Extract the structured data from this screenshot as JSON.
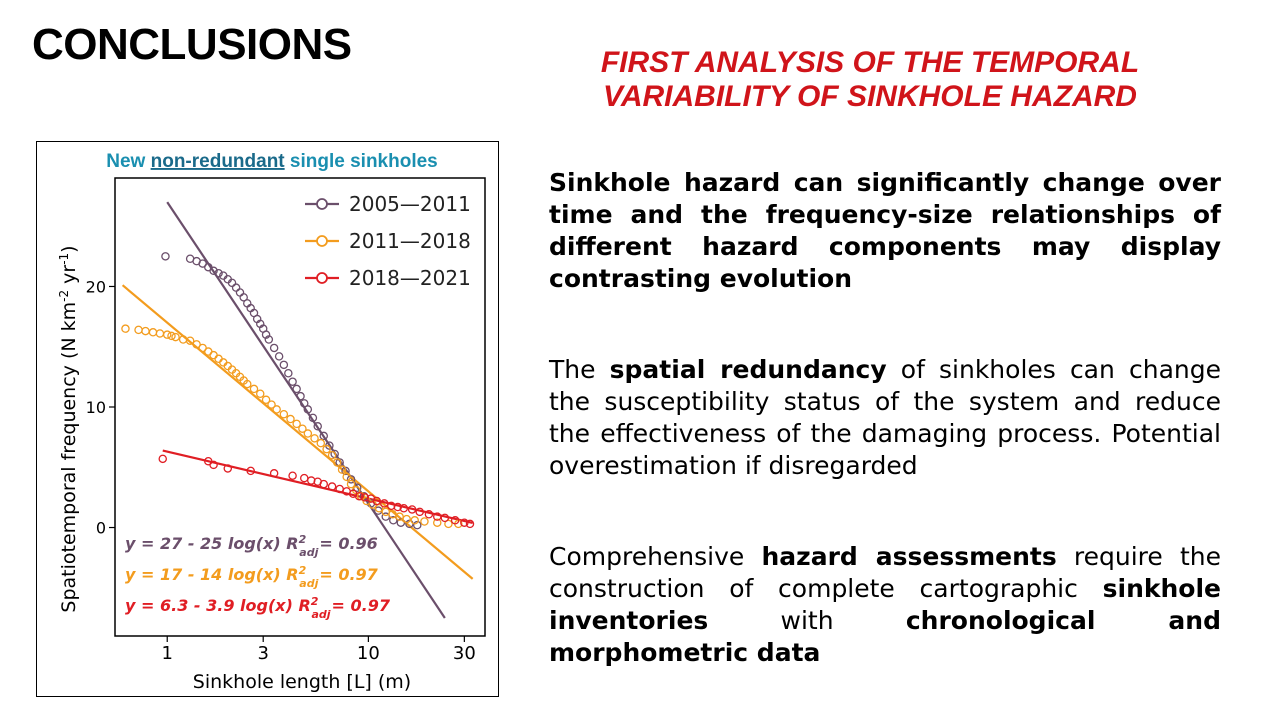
{
  "page": {
    "title": "CONCLUSIONS",
    "subtitle_line1": "FIRST ANALYSIS OF THE TEMPORAL",
    "subtitle_line2": "VARIABILITY OF SINKHOLE HAZARD"
  },
  "paragraphs": {
    "p1": "Sinkhole hazard can significantly change over time and the frequency-size relationships of different hazard components may display contrasting evolution",
    "p2_a": "The ",
    "p2_b": "spatial redundancy",
    "p2_c": " of sinkholes can change the susceptibility status of the system and reduce the effectiveness of the damaging process. Potential overestimation if disregarded",
    "p3_a": "Comprehensive ",
    "p3_b": "hazard assessments",
    "p3_c": " require the construction of complete cartographic ",
    "p3_d": "sinkhole inventories",
    "p3_e": " with ",
    "p3_f": "chronological and morphometric data"
  },
  "chart_data": {
    "type": "scatter",
    "title_a": "New ",
    "title_b": "non-redundant",
    "title_c": " single sinkholes",
    "xlabel": "Sinkhole length [L] (m)",
    "ylabel": "Spatiotemporal frequency (N km",
    "ylabel_sup1": "-2",
    "ylabel_mid": " yr",
    "ylabel_sup2": "-1",
    "ylabel_end": ")",
    "x_scale": "log",
    "xlim": [
      0.55,
      38
    ],
    "ylim": [
      -9,
      29
    ],
    "x_ticks": [
      {
        "value": 1,
        "label": "1"
      },
      {
        "value": 3,
        "label": "3"
      },
      {
        "value": 10,
        "label": "10"
      },
      {
        "value": 30,
        "label": "30"
      }
    ],
    "y_ticks": [
      {
        "value": 0,
        "label": "0"
      },
      {
        "value": 10,
        "label": "10"
      },
      {
        "value": 20,
        "label": "20"
      }
    ],
    "legend_position": "top-right",
    "series": [
      {
        "name": "2005—2011",
        "color": "#6b4f6b",
        "fit": {
          "a": 27,
          "b": 25,
          "x_range": [
            1,
            24
          ]
        },
        "equation": "y = 27 - 25 log(x) R",
        "r2": "= 0.96",
        "points": [
          [
            0.98,
            22.5
          ],
          [
            1.3,
            22.3
          ],
          [
            1.4,
            22.1
          ],
          [
            1.5,
            21.9
          ],
          [
            1.6,
            21.6
          ],
          [
            1.7,
            21.3
          ],
          [
            1.8,
            21.1
          ],
          [
            1.9,
            20.9
          ],
          [
            2.0,
            20.6
          ],
          [
            2.1,
            20.3
          ],
          [
            2.2,
            19.9
          ],
          [
            2.3,
            19.5
          ],
          [
            2.4,
            19.1
          ],
          [
            2.5,
            18.6
          ],
          [
            2.6,
            18.2
          ],
          [
            2.7,
            17.8
          ],
          [
            2.8,
            17.3
          ],
          [
            2.9,
            16.9
          ],
          [
            3.0,
            16.5
          ],
          [
            3.1,
            16.0
          ],
          [
            3.2,
            15.6
          ],
          [
            3.4,
            14.9
          ],
          [
            3.6,
            14.2
          ],
          [
            3.8,
            13.5
          ],
          [
            4.0,
            12.8
          ],
          [
            4.2,
            12.1
          ],
          [
            4.4,
            11.5
          ],
          [
            4.6,
            10.9
          ],
          [
            4.8,
            10.3
          ],
          [
            5.0,
            9.8
          ],
          [
            5.3,
            9.1
          ],
          [
            5.6,
            8.4
          ],
          [
            6.0,
            7.6
          ],
          [
            6.4,
            6.8
          ],
          [
            6.8,
            6.1
          ],
          [
            7.2,
            5.4
          ],
          [
            7.7,
            4.7
          ],
          [
            8.2,
            4.0
          ],
          [
            8.8,
            3.3
          ],
          [
            9.5,
            2.6
          ],
          [
            10.3,
            2.0
          ],
          [
            11.2,
            1.4
          ],
          [
            12.2,
            0.9
          ],
          [
            13.3,
            0.6
          ],
          [
            14.5,
            0.4
          ],
          [
            16.0,
            0.3
          ],
          [
            17.5,
            0.2
          ]
        ]
      },
      {
        "name": "2011—2018",
        "color": "#f39c1e",
        "fit": {
          "a": 17,
          "b": 14,
          "x_range": [
            0.6,
            33
          ]
        },
        "equation": "y = 17 - 14 log(x) R",
        "r2": "= 0.97",
        "points": [
          [
            0.62,
            16.5
          ],
          [
            0.72,
            16.4
          ],
          [
            0.78,
            16.3
          ],
          [
            0.85,
            16.2
          ],
          [
            0.92,
            16.1
          ],
          [
            1.0,
            16.0
          ],
          [
            1.05,
            15.9
          ],
          [
            1.1,
            15.8
          ],
          [
            1.2,
            15.6
          ],
          [
            1.3,
            15.5
          ],
          [
            1.4,
            15.2
          ],
          [
            1.5,
            14.9
          ],
          [
            1.6,
            14.6
          ],
          [
            1.7,
            14.3
          ],
          [
            1.8,
            14.0
          ],
          [
            1.9,
            13.7
          ],
          [
            2.0,
            13.4
          ],
          [
            2.1,
            13.1
          ],
          [
            2.2,
            12.8
          ],
          [
            2.3,
            12.5
          ],
          [
            2.4,
            12.2
          ],
          [
            2.5,
            11.9
          ],
          [
            2.7,
            11.5
          ],
          [
            2.9,
            11.1
          ],
          [
            3.1,
            10.6
          ],
          [
            3.3,
            10.2
          ],
          [
            3.5,
            9.8
          ],
          [
            3.8,
            9.4
          ],
          [
            4.1,
            9.0
          ],
          [
            4.4,
            8.6
          ],
          [
            4.7,
            8.2
          ],
          [
            5.0,
            7.8
          ],
          [
            5.4,
            7.4
          ],
          [
            5.8,
            7.0
          ],
          [
            6.2,
            6.5
          ],
          [
            6.6,
            6.0
          ],
          [
            7.0,
            5.4
          ],
          [
            7.4,
            4.8
          ],
          [
            7.8,
            4.2
          ],
          [
            8.2,
            3.6
          ],
          [
            8.7,
            3.1
          ],
          [
            9.2,
            2.6
          ],
          [
            9.8,
            2.2
          ],
          [
            10.5,
            1.9
          ],
          [
            11.3,
            1.6
          ],
          [
            12.2,
            1.3
          ],
          [
            13.2,
            1.1
          ],
          [
            14.3,
            0.9
          ],
          [
            15.5,
            0.7
          ],
          [
            17.0,
            0.6
          ],
          [
            19.0,
            0.5
          ],
          [
            22.0,
            0.4
          ],
          [
            25.0,
            0.3
          ],
          [
            28.0,
            0.3
          ]
        ]
      },
      {
        "name": "2018—2021",
        "color": "#e01e24",
        "fit": {
          "a": 6.3,
          "b": 3.9,
          "x_range": [
            0.95,
            33
          ]
        },
        "equation": "y = 6.3 - 3.9 log(x) R",
        "r2": "= 0.97",
        "points": [
          [
            0.95,
            5.7
          ],
          [
            1.6,
            5.5
          ],
          [
            1.7,
            5.2
          ],
          [
            2.0,
            4.9
          ],
          [
            2.6,
            4.7
          ],
          [
            3.4,
            4.5
          ],
          [
            4.2,
            4.3
          ],
          [
            4.8,
            4.1
          ],
          [
            5.2,
            3.9
          ],
          [
            5.6,
            3.8
          ],
          [
            6.0,
            3.6
          ],
          [
            6.6,
            3.4
          ],
          [
            7.2,
            3.2
          ],
          [
            7.8,
            3.0
          ],
          [
            8.4,
            2.8
          ],
          [
            9.0,
            2.6
          ],
          [
            9.6,
            2.5
          ],
          [
            10.3,
            2.4
          ],
          [
            11.0,
            2.2
          ],
          [
            12.0,
            2.0
          ],
          [
            13.0,
            1.8
          ],
          [
            14.0,
            1.7
          ],
          [
            15.0,
            1.6
          ],
          [
            16.5,
            1.5
          ],
          [
            18.0,
            1.3
          ],
          [
            20.0,
            1.1
          ],
          [
            22.0,
            0.9
          ],
          [
            24.0,
            0.8
          ],
          [
            27.0,
            0.6
          ],
          [
            30.0,
            0.4
          ],
          [
            32.0,
            0.3
          ]
        ]
      }
    ]
  }
}
